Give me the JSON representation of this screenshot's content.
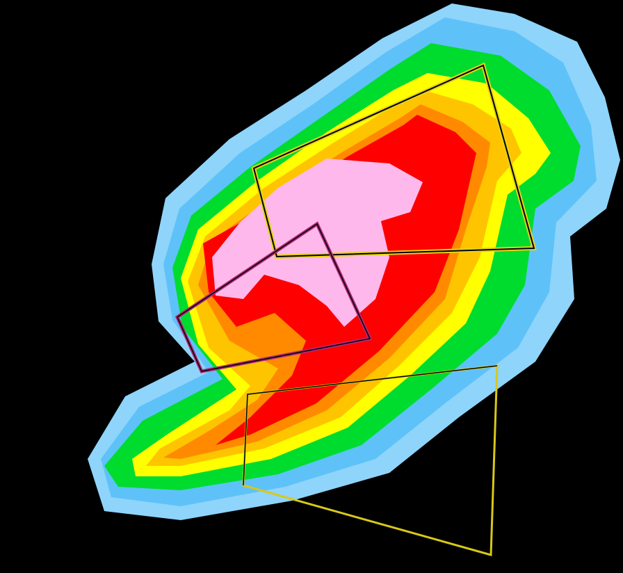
{
  "map": {
    "type": "radar-reflectivity",
    "background_color": "#000000",
    "reflectivity_colors": {
      "light_blue": "#8fd4fb",
      "blue": "#5ec2f9",
      "green": "#00dc2e",
      "yellow": "#ffff00",
      "gold": "#ffc400",
      "orange": "#ff8a00",
      "red": "#ff0000",
      "pink": "#ffb8ec"
    },
    "warning_polygons": [
      {
        "name": "warning-polygon-north",
        "color": "#e6d21a"
      },
      {
        "name": "warning-polygon-center",
        "color": "#b02a78"
      },
      {
        "name": "warning-polygon-south",
        "color": "#d8c81a"
      }
    ]
  }
}
